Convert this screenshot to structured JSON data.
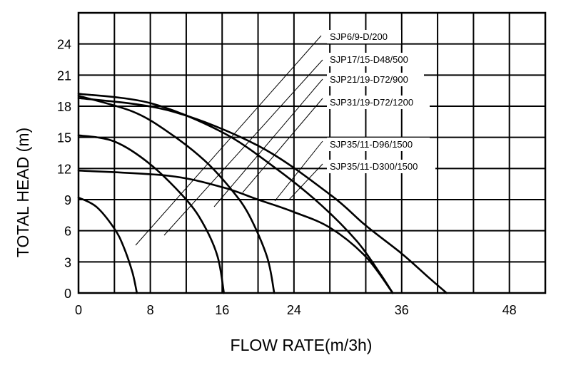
{
  "chart_data": {
    "type": "line",
    "xlabel": "FLOW RATE(m/3h)",
    "ylabel": "TOTAL HEAD  (m)",
    "x_ticks": [
      "0",
      "8",
      "16",
      "24",
      "36",
      "48"
    ],
    "y_ticks": [
      "0",
      "3",
      "6",
      "9",
      "12",
      "15",
      "18",
      "21",
      "24"
    ],
    "xlim": [
      0,
      52
    ],
    "ylim": [
      0,
      27
    ],
    "grid": true,
    "legend_position": "upper-right, labels pointing to curves",
    "series": [
      {
        "name": "SJP6/9-D/200",
        "x": [
          0,
          2,
          4,
          5,
          6,
          6.5
        ],
        "y": [
          9.2,
          8.3,
          6.2,
          4.5,
          2,
          0
        ]
      },
      {
        "name": "SJP17/15-D48/500",
        "x": [
          0,
          4,
          8,
          12,
          14,
          15.5,
          16.2
        ],
        "y": [
          15.2,
          14.6,
          12.4,
          9,
          6.5,
          3.5,
          0
        ]
      },
      {
        "name": "SJP21/19-D72/900",
        "x": [
          0,
          6,
          10,
          14,
          17,
          19,
          21,
          21.8
        ],
        "y": [
          19,
          17.5,
          15.5,
          12.8,
          10,
          7.5,
          3.5,
          0
        ]
      },
      {
        "name": "SJP31/19-D72/1200",
        "x": [
          0,
          8,
          16,
          22,
          27,
          31,
          33.5,
          35
        ],
        "y": [
          19.2,
          18.3,
          15.5,
          12,
          8.5,
          5,
          2,
          0
        ]
      },
      {
        "name": "SJP35/11-D96/1500",
        "x": [
          0,
          10,
          16,
          20,
          24,
          28,
          32,
          35
        ],
        "y": [
          11.8,
          11.3,
          10.2,
          9,
          7.8,
          6.3,
          3.5,
          0
        ]
      },
      {
        "name": "SJP35/11-D300/1500",
        "x": [
          0,
          10,
          20,
          28,
          32,
          36,
          39,
          41
        ],
        "y": [
          18.8,
          17.6,
          14.2,
          9.5,
          6.5,
          3.8,
          1.5,
          0
        ]
      }
    ]
  }
}
